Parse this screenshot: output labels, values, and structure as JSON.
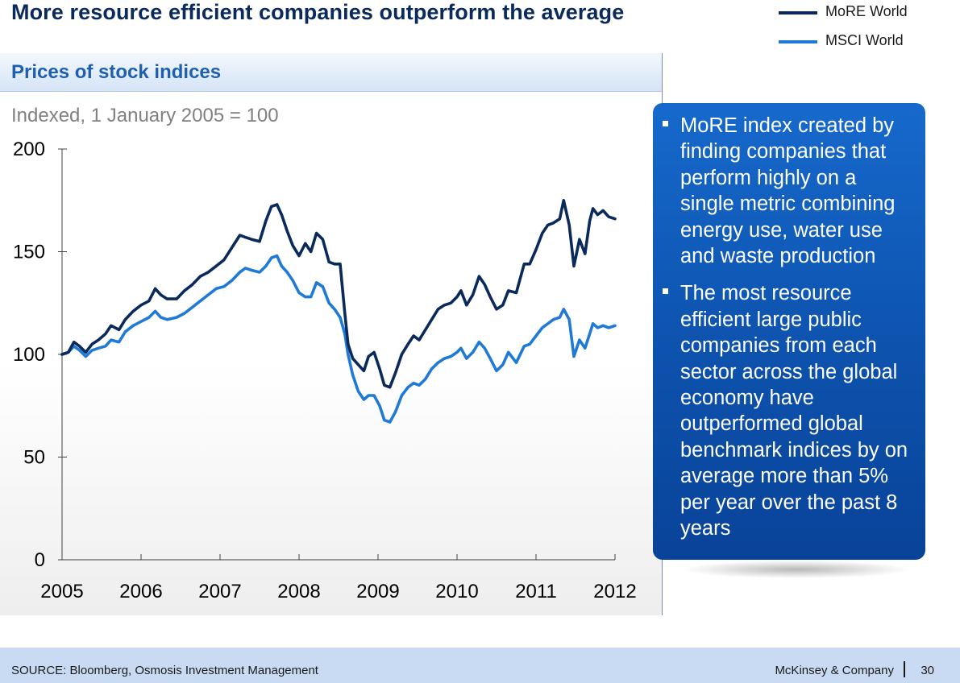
{
  "slide": {
    "title": "More resource efficient companies outperform the average"
  },
  "panel": {
    "title": "Prices of stock indices",
    "subtitle": "Indexed, 1 January 2005 = 100"
  },
  "callout": {
    "bullets": [
      "MoRE index created by finding companies that perform highly on a single metric combining energy use, water use and waste production",
      "The most resource efficient large public companies from each sector across the global economy have outperformed global benchmark indices by on average more than 5% per year over the past 8 years"
    ]
  },
  "footer": {
    "source": "SOURCE: Bloomberg, Osmosis Investment Management",
    "brand": "McKinsey & Company",
    "page": "30"
  },
  "colors": {
    "more": "#0b2a5c",
    "msci": "#1f7ad6",
    "axis": "#404040"
  },
  "chart_data": {
    "type": "line",
    "title": "Prices of stock indices",
    "subtitle": "Indexed, 1 January 2005 = 100",
    "xlabel": "",
    "ylabel": "",
    "xlim": [
      2005,
      2012
    ],
    "ylim": [
      0,
      200
    ],
    "yticks": [
      0,
      50,
      100,
      150,
      200
    ],
    "xticks": [
      "2005",
      "2006",
      "2007",
      "2008",
      "2009",
      "2010",
      "2011",
      "2012"
    ],
    "legend_position": "top-right",
    "series": [
      {
        "name": "MoRE World",
        "color": "#0b2a5c",
        "points": [
          [
            2005.0,
            100
          ],
          [
            2005.08,
            101
          ],
          [
            2005.15,
            106
          ],
          [
            2005.22,
            104
          ],
          [
            2005.3,
            101
          ],
          [
            2005.38,
            105
          ],
          [
            2005.46,
            107
          ],
          [
            2005.55,
            110
          ],
          [
            2005.62,
            114
          ],
          [
            2005.72,
            112
          ],
          [
            2005.8,
            117
          ],
          [
            2005.9,
            121
          ],
          [
            2006.0,
            124
          ],
          [
            2006.1,
            126
          ],
          [
            2006.18,
            132
          ],
          [
            2006.25,
            129
          ],
          [
            2006.33,
            127
          ],
          [
            2006.45,
            127
          ],
          [
            2006.55,
            131
          ],
          [
            2006.65,
            134
          ],
          [
            2006.75,
            138
          ],
          [
            2006.85,
            140
          ],
          [
            2006.95,
            143
          ],
          [
            2007.05,
            146
          ],
          [
            2007.15,
            152
          ],
          [
            2007.25,
            158
          ],
          [
            2007.32,
            157
          ],
          [
            2007.4,
            156
          ],
          [
            2007.5,
            155
          ],
          [
            2007.58,
            165
          ],
          [
            2007.65,
            172
          ],
          [
            2007.72,
            173
          ],
          [
            2007.78,
            168
          ],
          [
            2007.85,
            160
          ],
          [
            2007.92,
            153
          ],
          [
            2008.0,
            148
          ],
          [
            2008.08,
            154
          ],
          [
            2008.15,
            150
          ],
          [
            2008.22,
            159
          ],
          [
            2008.3,
            156
          ],
          [
            2008.38,
            145
          ],
          [
            2008.45,
            144
          ],
          [
            2008.52,
            144
          ],
          [
            2008.58,
            120
          ],
          [
            2008.62,
            105
          ],
          [
            2008.68,
            98
          ],
          [
            2008.75,
            95
          ],
          [
            2008.82,
            92
          ],
          [
            2008.88,
            99
          ],
          [
            2008.95,
            101
          ],
          [
            2009.02,
            93
          ],
          [
            2009.08,
            85
          ],
          [
            2009.15,
            84
          ],
          [
            2009.22,
            91
          ],
          [
            2009.3,
            100
          ],
          [
            2009.38,
            105
          ],
          [
            2009.45,
            109
          ],
          [
            2009.52,
            107
          ],
          [
            2009.6,
            112
          ],
          [
            2009.68,
            117
          ],
          [
            2009.76,
            122
          ],
          [
            2009.84,
            124
          ],
          [
            2009.92,
            125
          ],
          [
            2010.0,
            128
          ],
          [
            2010.05,
            131
          ],
          [
            2010.12,
            124
          ],
          [
            2010.2,
            129
          ],
          [
            2010.28,
            138
          ],
          [
            2010.35,
            134
          ],
          [
            2010.42,
            128
          ],
          [
            2010.5,
            122
          ],
          [
            2010.58,
            124
          ],
          [
            2010.65,
            131
          ],
          [
            2010.75,
            130
          ],
          [
            2010.85,
            144
          ],
          [
            2010.92,
            144
          ],
          [
            2011.0,
            151
          ],
          [
            2011.08,
            159
          ],
          [
            2011.15,
            163
          ],
          [
            2011.22,
            164
          ],
          [
            2011.3,
            166
          ],
          [
            2011.35,
            175
          ],
          [
            2011.42,
            163
          ],
          [
            2011.48,
            143
          ],
          [
            2011.55,
            156
          ],
          [
            2011.62,
            149
          ],
          [
            2011.68,
            165
          ],
          [
            2011.72,
            171
          ],
          [
            2011.78,
            168
          ],
          [
            2011.85,
            170
          ],
          [
            2011.92,
            167
          ],
          [
            2012.0,
            166
          ]
        ]
      },
      {
        "name": "MSCI World",
        "color": "#1f7ad6",
        "points": [
          [
            2005.0,
            100
          ],
          [
            2005.08,
            101
          ],
          [
            2005.15,
            104
          ],
          [
            2005.22,
            102
          ],
          [
            2005.3,
            99
          ],
          [
            2005.38,
            102
          ],
          [
            2005.46,
            103
          ],
          [
            2005.55,
            104
          ],
          [
            2005.62,
            107
          ],
          [
            2005.72,
            106
          ],
          [
            2005.8,
            111
          ],
          [
            2005.9,
            114
          ],
          [
            2006.0,
            116
          ],
          [
            2006.1,
            118
          ],
          [
            2006.18,
            121
          ],
          [
            2006.25,
            118
          ],
          [
            2006.33,
            117
          ],
          [
            2006.45,
            118
          ],
          [
            2006.55,
            120
          ],
          [
            2006.65,
            123
          ],
          [
            2006.75,
            126
          ],
          [
            2006.85,
            129
          ],
          [
            2006.95,
            132
          ],
          [
            2007.05,
            133
          ],
          [
            2007.15,
            136
          ],
          [
            2007.25,
            140
          ],
          [
            2007.32,
            142
          ],
          [
            2007.4,
            141
          ],
          [
            2007.5,
            140
          ],
          [
            2007.58,
            143
          ],
          [
            2007.65,
            147
          ],
          [
            2007.72,
            148
          ],
          [
            2007.78,
            143
          ],
          [
            2007.85,
            140
          ],
          [
            2007.92,
            136
          ],
          [
            2008.0,
            130
          ],
          [
            2008.08,
            128
          ],
          [
            2008.15,
            128
          ],
          [
            2008.22,
            135
          ],
          [
            2008.3,
            133
          ],
          [
            2008.38,
            125
          ],
          [
            2008.45,
            122
          ],
          [
            2008.52,
            118
          ],
          [
            2008.58,
            110
          ],
          [
            2008.62,
            100
          ],
          [
            2008.68,
            90
          ],
          [
            2008.75,
            82
          ],
          [
            2008.82,
            78
          ],
          [
            2008.88,
            80
          ],
          [
            2008.95,
            80
          ],
          [
            2009.02,
            75
          ],
          [
            2009.08,
            68
          ],
          [
            2009.15,
            67
          ],
          [
            2009.22,
            72
          ],
          [
            2009.3,
            80
          ],
          [
            2009.38,
            84
          ],
          [
            2009.45,
            86
          ],
          [
            2009.52,
            85
          ],
          [
            2009.6,
            88
          ],
          [
            2009.68,
            93
          ],
          [
            2009.76,
            96
          ],
          [
            2009.84,
            98
          ],
          [
            2009.92,
            99
          ],
          [
            2010.0,
            101
          ],
          [
            2010.05,
            103
          ],
          [
            2010.12,
            98
          ],
          [
            2010.2,
            101
          ],
          [
            2010.28,
            106
          ],
          [
            2010.35,
            103
          ],
          [
            2010.42,
            98
          ],
          [
            2010.5,
            92
          ],
          [
            2010.58,
            95
          ],
          [
            2010.65,
            101
          ],
          [
            2010.75,
            96
          ],
          [
            2010.85,
            104
          ],
          [
            2010.92,
            105
          ],
          [
            2011.0,
            109
          ],
          [
            2011.08,
            113
          ],
          [
            2011.15,
            115
          ],
          [
            2011.22,
            117
          ],
          [
            2011.3,
            118
          ],
          [
            2011.35,
            122
          ],
          [
            2011.42,
            117
          ],
          [
            2011.48,
            99
          ],
          [
            2011.55,
            107
          ],
          [
            2011.62,
            103
          ],
          [
            2011.68,
            110
          ],
          [
            2011.72,
            115
          ],
          [
            2011.78,
            113
          ],
          [
            2011.85,
            114
          ],
          [
            2011.92,
            113
          ],
          [
            2012.0,
            114
          ]
        ]
      }
    ]
  }
}
